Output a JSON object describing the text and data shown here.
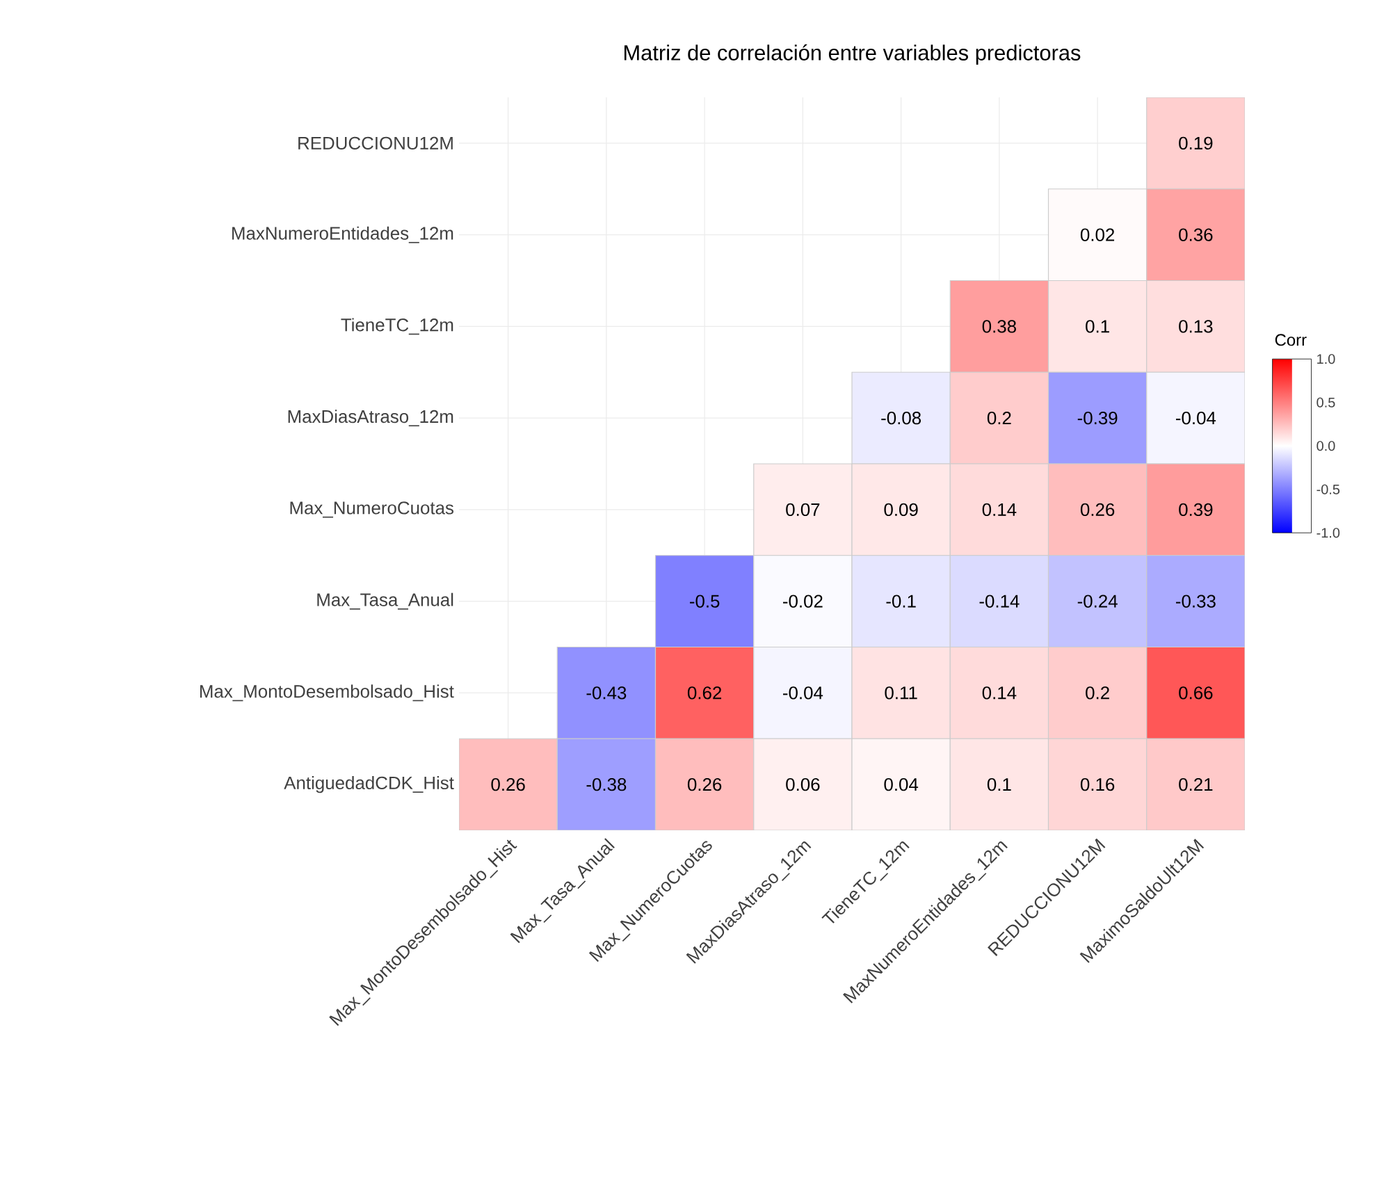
{
  "chart_data": {
    "type": "heatmap",
    "title": "Matriz de correlación entre variables predictoras",
    "categories": [
      "Max_MontoDesembolsado_Hist",
      "Max_Tasa_Anual",
      "Max_NumeroCuotas",
      "MaxDiasAtraso_12m",
      "TieneTC_12m",
      "MaxNumeroEntidades_12m",
      "REDUCCIONU12M",
      "MaximoSaldoUlt12M"
    ],
    "y_categories": [
      "REDUCCIONU12M",
      "MaxNumeroEntidades_12m",
      "TieneTC_12m",
      "MaxDiasAtraso_12m",
      "Max_NumeroCuotas",
      "Max_Tasa_Anual",
      "Max_MontoDesembolsado_Hist",
      "AntiguedadCDK_Hist"
    ],
    "cells": [
      [
        null,
        null,
        null,
        null,
        null,
        null,
        null,
        0.19
      ],
      [
        null,
        null,
        null,
        null,
        null,
        null,
        0.02,
        0.36
      ],
      [
        null,
        null,
        null,
        null,
        null,
        0.38,
        0.1,
        0.13
      ],
      [
        null,
        null,
        null,
        null,
        -0.08,
        0.2,
        -0.39,
        -0.04
      ],
      [
        null,
        null,
        null,
        0.07,
        0.09,
        0.14,
        0.26,
        0.39
      ],
      [
        null,
        null,
        -0.5,
        -0.02,
        -0.1,
        -0.14,
        -0.24,
        -0.33
      ],
      [
        null,
        -0.43,
        0.62,
        -0.04,
        0.11,
        0.14,
        0.2,
        0.66
      ],
      [
        0.26,
        -0.38,
        0.26,
        0.06,
        0.04,
        0.1,
        0.16,
        0.21
      ]
    ],
    "data_labels": true,
    "clabel": "Corr",
    "clim": [
      -1,
      1
    ],
    "cticks": [
      {
        "value": -1,
        "label": "-1.0"
      },
      -0.5,
      {
        "value": 0,
        "label": "0.0"
      },
      0.5,
      {
        "value": 1,
        "label": "1.0"
      }
    ],
    "grid": true
  }
}
